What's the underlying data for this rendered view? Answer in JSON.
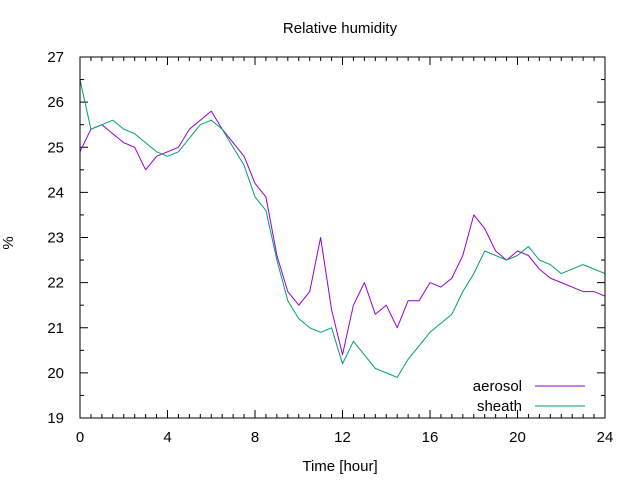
{
  "chart_data": {
    "type": "line",
    "title": "Relative humidity",
    "xlabel": "Time [hour]",
    "ylabel": "%",
    "xlim": [
      0,
      24
    ],
    "ylim": [
      19,
      27
    ],
    "x_ticks": [
      0,
      4,
      8,
      12,
      16,
      20,
      24
    ],
    "y_ticks": [
      19,
      20,
      21,
      22,
      23,
      24,
      25,
      26,
      27
    ],
    "grid": false,
    "legend_position": "bottom-right",
    "x": [
      0,
      0.5,
      1,
      1.5,
      2,
      2.5,
      3,
      3.5,
      4,
      4.5,
      5,
      5.5,
      6,
      6.5,
      7,
      7.5,
      8,
      8.5,
      9,
      9.5,
      10,
      10.5,
      11,
      11.5,
      12,
      12.5,
      13,
      13.5,
      14,
      14.5,
      15,
      15.5,
      16,
      16.5,
      17,
      17.5,
      18,
      18.5,
      19,
      19.5,
      20,
      20.5,
      21,
      21.5,
      22,
      22.5,
      23,
      23.5,
      24
    ],
    "series": [
      {
        "name": "aerosol",
        "color": "#9400d3",
        "values": [
          24.9,
          25.4,
          25.5,
          25.3,
          25.1,
          25.0,
          24.5,
          24.8,
          24.9,
          25.0,
          25.4,
          25.6,
          25.8,
          25.4,
          25.1,
          24.8,
          24.2,
          23.9,
          22.6,
          21.8,
          21.5,
          21.8,
          23.0,
          21.4,
          20.4,
          21.5,
          22.0,
          21.3,
          21.5,
          21.0,
          21.6,
          21.6,
          22.0,
          21.9,
          22.1,
          22.6,
          23.5,
          23.2,
          22.7,
          22.5,
          22.7,
          22.6,
          22.3,
          22.1,
          22.0,
          21.9,
          21.8,
          21.8,
          21.7
        ]
      },
      {
        "name": "sheath",
        "color": "#009e73",
        "values": [
          26.5,
          25.4,
          25.5,
          25.6,
          25.4,
          25.3,
          25.1,
          24.9,
          24.8,
          24.9,
          25.2,
          25.5,
          25.6,
          25.4,
          25.0,
          24.6,
          23.9,
          23.6,
          22.5,
          21.6,
          21.2,
          21.0,
          20.9,
          21.0,
          20.2,
          20.7,
          20.4,
          20.1,
          20.0,
          19.9,
          20.3,
          20.6,
          20.9,
          21.1,
          21.3,
          21.8,
          22.2,
          22.7,
          22.6,
          22.5,
          22.6,
          22.8,
          22.5,
          22.4,
          22.2,
          22.3,
          22.4,
          22.3,
          22.2
        ]
      }
    ]
  }
}
